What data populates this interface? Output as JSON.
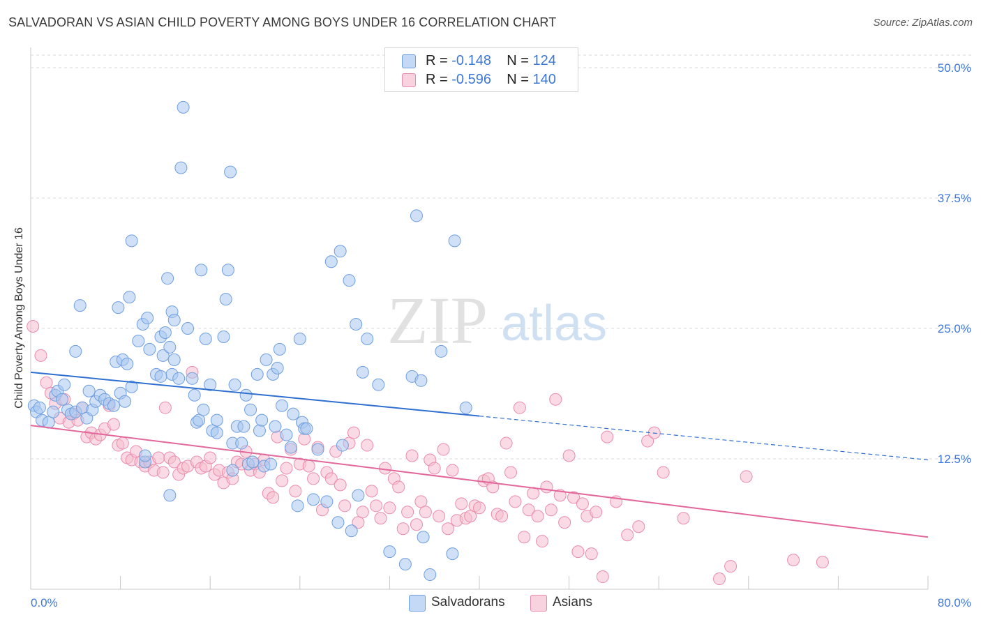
{
  "title": "SALVADORAN VS ASIAN CHILD POVERTY AMONG BOYS UNDER 16 CORRELATION CHART",
  "source": "Source: ZipAtlas.com",
  "watermark": {
    "zip": "ZIP",
    "atlas": "atlas"
  },
  "colors": {
    "blue_fill": "#a9c8f0",
    "blue_stroke": "#6e9edf",
    "blue_line": "#2f6fd0",
    "pink_fill": "#f6bdd0",
    "pink_stroke": "#e98cab",
    "pink_line": "#e2679a",
    "value_text": "#3d78d8",
    "grid": "#d9d9d9"
  },
  "legend": {
    "rows": [
      {
        "r_label": "R =",
        "r_value": "-0.148",
        "n_label": "N =",
        "n_value": "124"
      },
      {
        "r_label": "R =",
        "r_value": "-0.596",
        "n_label": "N =",
        "n_value": "140"
      }
    ]
  },
  "bottom_legend": [
    "Salvadorans",
    "Asians"
  ],
  "chart_data": {
    "type": "scatter",
    "title": "SALVADORAN VS ASIAN CHILD POVERTY AMONG BOYS UNDER 16 CORRELATION CHART",
    "xlabel": "",
    "ylabel": "Child Poverty Among Boys Under 16",
    "xlim": [
      0,
      80
    ],
    "ylim": [
      0,
      50
    ],
    "x_tick_labels": [
      "0.0%",
      "80.0%"
    ],
    "y_ticks": [
      12.5,
      25.0,
      37.5,
      50.0
    ],
    "y_tick_labels": [
      "12.5%",
      "25.0%",
      "37.5%",
      "50.0%"
    ],
    "grid": "horizontal dashed",
    "series": [
      {
        "name": "Salvadorans",
        "r": -0.148,
        "n": 124,
        "trend": {
          "x": [
            0,
            80
          ],
          "y": [
            20.8,
            12.4
          ],
          "solid_until_x": 40
        },
        "points": [
          [
            0.3,
            17.6
          ],
          [
            0.5,
            17.0
          ],
          [
            1.0,
            16.2
          ],
          [
            0.8,
            17.4
          ],
          [
            1.6,
            16.0
          ],
          [
            2.0,
            17.0
          ],
          [
            2.2,
            18.6
          ],
          [
            2.4,
            19.0
          ],
          [
            2.8,
            18.2
          ],
          [
            3.0,
            19.6
          ],
          [
            3.3,
            17.2
          ],
          [
            3.6,
            16.8
          ],
          [
            4.0,
            17.0
          ],
          [
            4.6,
            17.4
          ],
          [
            5.0,
            16.4
          ],
          [
            5.2,
            19.0
          ],
          [
            5.5,
            17.2
          ],
          [
            5.8,
            18.0
          ],
          [
            6.2,
            18.6
          ],
          [
            6.6,
            18.2
          ],
          [
            7.0,
            17.8
          ],
          [
            7.4,
            17.6
          ],
          [
            8.0,
            18.8
          ],
          [
            8.4,
            18.0
          ],
          [
            9.0,
            19.4
          ],
          [
            4.0,
            22.8
          ],
          [
            4.4,
            27.2
          ],
          [
            7.6,
            21.8
          ],
          [
            7.8,
            27.0
          ],
          [
            8.2,
            22.0
          ],
          [
            8.6,
            21.6
          ],
          [
            8.8,
            28.0
          ],
          [
            9.0,
            33.4
          ],
          [
            9.6,
            23.8
          ],
          [
            10.0,
            25.4
          ],
          [
            10.4,
            26.0
          ],
          [
            10.6,
            23.0
          ],
          [
            11.2,
            20.6
          ],
          [
            11.6,
            24.2
          ],
          [
            11.8,
            22.4
          ],
          [
            12.0,
            24.6
          ],
          [
            12.4,
            23.2
          ],
          [
            12.6,
            20.6
          ],
          [
            12.2,
            29.8
          ],
          [
            12.8,
            22.0
          ],
          [
            12.6,
            26.6
          ],
          [
            12.8,
            25.8
          ],
          [
            13.2,
            20.2
          ],
          [
            13.4,
            40.4
          ],
          [
            13.6,
            46.2
          ],
          [
            14.0,
            25.0
          ],
          [
            14.4,
            20.2
          ],
          [
            14.8,
            16.0
          ],
          [
            15.0,
            16.2
          ],
          [
            15.2,
            30.6
          ],
          [
            15.6,
            24.0
          ],
          [
            16.0,
            19.6
          ],
          [
            16.2,
            15.2
          ],
          [
            16.6,
            16.2
          ],
          [
            17.2,
            24.2
          ],
          [
            17.4,
            27.8
          ],
          [
            17.6,
            30.6
          ],
          [
            17.8,
            40.0
          ],
          [
            18.0,
            14.0
          ],
          [
            18.2,
            19.6
          ],
          [
            18.4,
            15.6
          ],
          [
            18.8,
            14.0
          ],
          [
            19.2,
            18.6
          ],
          [
            19.4,
            12.0
          ],
          [
            19.6,
            17.2
          ],
          [
            19.8,
            12.2
          ],
          [
            20.2,
            20.6
          ],
          [
            20.4,
            15.2
          ],
          [
            20.6,
            16.2
          ],
          [
            20.8,
            11.8
          ],
          [
            21.0,
            22.0
          ],
          [
            21.4,
            12.0
          ],
          [
            21.6,
            20.6
          ],
          [
            22.0,
            21.2
          ],
          [
            22.2,
            23.0
          ],
          [
            22.8,
            14.8
          ],
          [
            23.4,
            16.8
          ],
          [
            23.8,
            8.0
          ],
          [
            24.0,
            24.0
          ],
          [
            24.2,
            16.0
          ],
          [
            24.4,
            15.4
          ],
          [
            24.6,
            15.4
          ],
          [
            25.2,
            8.6
          ],
          [
            25.6,
            13.4
          ],
          [
            26.4,
            8.4
          ],
          [
            26.8,
            31.4
          ],
          [
            27.4,
            6.4
          ],
          [
            27.6,
            32.4
          ],
          [
            27.8,
            13.8
          ],
          [
            28.4,
            29.6
          ],
          [
            28.6,
            5.6
          ],
          [
            29.0,
            25.4
          ],
          [
            29.2,
            9.0
          ],
          [
            29.6,
            20.8
          ],
          [
            30.0,
            24.0
          ],
          [
            31.0,
            19.6
          ],
          [
            32.0,
            3.6
          ],
          [
            33.4,
            2.4
          ],
          [
            34.0,
            20.4
          ],
          [
            34.8,
            20.0
          ],
          [
            35.0,
            5.0
          ],
          [
            35.6,
            1.4
          ],
          [
            34.4,
            35.8
          ],
          [
            36.6,
            22.8
          ],
          [
            37.6,
            3.4
          ],
          [
            37.8,
            33.4
          ],
          [
            38.8,
            17.4
          ],
          [
            12.4,
            9.0
          ],
          [
            10.2,
            12.2
          ],
          [
            11.6,
            20.4
          ],
          [
            10.2,
            12.8
          ],
          [
            14.6,
            18.6
          ],
          [
            15.4,
            17.2
          ],
          [
            16.6,
            15.0
          ],
          [
            18.0,
            11.4
          ],
          [
            19.0,
            15.6
          ],
          [
            21.8,
            15.6
          ],
          [
            22.4,
            17.6
          ],
          [
            23.2,
            13.6
          ]
        ]
      },
      {
        "name": "Asians",
        "r": -0.596,
        "n": 140,
        "trend": {
          "x": [
            0,
            80
          ],
          "y": [
            15.7,
            5.0
          ]
        },
        "points": [
          [
            0.2,
            25.2
          ],
          [
            0.9,
            22.4
          ],
          [
            1.4,
            19.8
          ],
          [
            1.8,
            18.8
          ],
          [
            2.2,
            17.8
          ],
          [
            2.6,
            16.4
          ],
          [
            3.0,
            18.2
          ],
          [
            3.4,
            16.0
          ],
          [
            3.8,
            16.8
          ],
          [
            4.2,
            16.2
          ],
          [
            4.6,
            17.4
          ],
          [
            5.0,
            14.6
          ],
          [
            5.4,
            15.0
          ],
          [
            5.8,
            14.4
          ],
          [
            6.2,
            14.8
          ],
          [
            6.6,
            15.4
          ],
          [
            7.0,
            17.6
          ],
          [
            7.4,
            15.8
          ],
          [
            7.8,
            13.8
          ],
          [
            8.2,
            14.0
          ],
          [
            8.6,
            12.6
          ],
          [
            9.0,
            12.4
          ],
          [
            9.4,
            13.2
          ],
          [
            9.8,
            12.2
          ],
          [
            10.2,
            11.8
          ],
          [
            10.6,
            12.2
          ],
          [
            11.0,
            11.4
          ],
          [
            11.4,
            12.6
          ],
          [
            11.8,
            11.2
          ],
          [
            12.0,
            17.4
          ],
          [
            12.4,
            12.6
          ],
          [
            12.8,
            12.2
          ],
          [
            13.2,
            11.0
          ],
          [
            13.6,
            11.6
          ],
          [
            14.0,
            11.8
          ],
          [
            14.4,
            20.8
          ],
          [
            14.8,
            12.2
          ],
          [
            15.2,
            11.6
          ],
          [
            15.6,
            11.8
          ],
          [
            16.0,
            12.6
          ],
          [
            16.4,
            11.0
          ],
          [
            16.8,
            11.4
          ],
          [
            17.2,
            10.2
          ],
          [
            17.6,
            11.2
          ],
          [
            18.0,
            10.6
          ],
          [
            18.4,
            12.2
          ],
          [
            18.8,
            12.0
          ],
          [
            19.2,
            13.2
          ],
          [
            19.6,
            11.4
          ],
          [
            20.0,
            12.0
          ],
          [
            20.4,
            11.2
          ],
          [
            20.8,
            12.4
          ],
          [
            21.2,
            9.2
          ],
          [
            21.6,
            8.8
          ],
          [
            22.0,
            14.6
          ],
          [
            22.4,
            10.4
          ],
          [
            22.8,
            11.6
          ],
          [
            23.2,
            13.4
          ],
          [
            23.6,
            9.4
          ],
          [
            24.0,
            12.0
          ],
          [
            24.4,
            14.4
          ],
          [
            24.8,
            11.8
          ],
          [
            25.2,
            10.6
          ],
          [
            25.6,
            13.6
          ],
          [
            26.0,
            7.6
          ],
          [
            26.4,
            11.2
          ],
          [
            26.8,
            10.6
          ],
          [
            27.2,
            13.2
          ],
          [
            27.6,
            10.0
          ],
          [
            28.0,
            8.0
          ],
          [
            28.4,
            14.0
          ],
          [
            28.8,
            15.0
          ],
          [
            29.2,
            6.4
          ],
          [
            29.6,
            7.4
          ],
          [
            30.0,
            13.8
          ],
          [
            30.4,
            9.4
          ],
          [
            30.8,
            8.0
          ],
          [
            31.2,
            6.8
          ],
          [
            31.6,
            11.6
          ],
          [
            32.0,
            7.8
          ],
          [
            32.4,
            10.6
          ],
          [
            32.8,
            9.8
          ],
          [
            33.2,
            5.8
          ],
          [
            33.6,
            7.4
          ],
          [
            34.0,
            12.8
          ],
          [
            34.4,
            6.2
          ],
          [
            34.8,
            8.4
          ],
          [
            35.2,
            7.4
          ],
          [
            35.6,
            12.4
          ],
          [
            36.0,
            11.6
          ],
          [
            36.4,
            7.0
          ],
          [
            36.8,
            13.4
          ],
          [
            37.2,
            5.8
          ],
          [
            37.6,
            11.4
          ],
          [
            38.0,
            6.6
          ],
          [
            38.4,
            8.2
          ],
          [
            38.8,
            6.8
          ],
          [
            39.2,
            7.0
          ],
          [
            39.6,
            8.0
          ],
          [
            40.0,
            7.8
          ],
          [
            40.4,
            10.4
          ],
          [
            40.8,
            10.6
          ],
          [
            41.2,
            9.8
          ],
          [
            41.6,
            7.2
          ],
          [
            42.0,
            7.0
          ],
          [
            42.4,
            14.0
          ],
          [
            42.8,
            11.2
          ],
          [
            43.2,
            8.4
          ],
          [
            43.6,
            17.4
          ],
          [
            44.0,
            5.0
          ],
          [
            44.4,
            7.6
          ],
          [
            44.8,
            9.2
          ],
          [
            45.2,
            7.0
          ],
          [
            45.6,
            4.6
          ],
          [
            46.0,
            9.8
          ],
          [
            46.4,
            7.6
          ],
          [
            46.8,
            18.2
          ],
          [
            47.2,
            9.0
          ],
          [
            47.6,
            6.4
          ],
          [
            48.0,
            12.8
          ],
          [
            48.4,
            8.8
          ],
          [
            48.8,
            3.6
          ],
          [
            49.2,
            8.2
          ],
          [
            49.6,
            7.0
          ],
          [
            50.0,
            3.4
          ],
          [
            50.4,
            7.4
          ],
          [
            51.0,
            1.2
          ],
          [
            51.4,
            14.6
          ],
          [
            52.2,
            8.4
          ],
          [
            53.2,
            5.2
          ],
          [
            54.2,
            6.0
          ],
          [
            55.0,
            14.2
          ],
          [
            56.4,
            11.2
          ],
          [
            58.2,
            6.8
          ],
          [
            61.4,
            1.0
          ],
          [
            62.4,
            2.2
          ],
          [
            63.8,
            10.8
          ],
          [
            68.0,
            2.8
          ],
          [
            70.6,
            2.6
          ],
          [
            55.6,
            15.0
          ]
        ]
      }
    ]
  }
}
